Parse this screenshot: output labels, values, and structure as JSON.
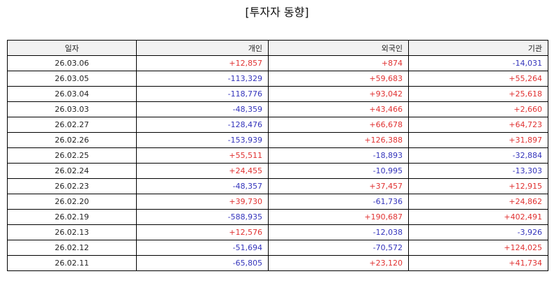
{
  "title": "[투자자 동향]",
  "table": {
    "headers": [
      "일자",
      "개인",
      "외국인",
      "기관"
    ],
    "rows": [
      [
        "26.03.06",
        "+12,857",
        "+874",
        "-14,031"
      ],
      [
        "26.03.05",
        "-113,329",
        "+59,683",
        "+55,264"
      ],
      [
        "26.03.04",
        "-118,776",
        "+93,042",
        "+25,618"
      ],
      [
        "26.03.03",
        "-48,359",
        "+43,466",
        "+2,660"
      ],
      [
        "26.02.27",
        "-128,476",
        "+66,678",
        "+64,723"
      ],
      [
        "26.02.26",
        "-153,939",
        "+126,388",
        "+31,897"
      ],
      [
        "26.02.25",
        "+55,511",
        "-18,893",
        "-32,884"
      ],
      [
        "26.02.24",
        "+24,455",
        "-10,995",
        "-13,303"
      ],
      [
        "26.02.23",
        "-48,357",
        "+37,457",
        "+12,915"
      ],
      [
        "26.02.20",
        "+39,730",
        "-61,736",
        "+24,862"
      ],
      [
        "26.02.19",
        "-588,935",
        "+190,687",
        "+402,491"
      ],
      [
        "26.02.13",
        "+12,576",
        "-12,038",
        "-3,926"
      ],
      [
        "26.02.12",
        "-51,694",
        "-70,572",
        "+124,025"
      ],
      [
        "26.02.11",
        "-65,805",
        "+23,120",
        "+41,734"
      ]
    ]
  },
  "colors": {
    "positive": "#e03131",
    "negative": "#3333bb",
    "header_bg": "#f2f2f2",
    "border": "#000000"
  }
}
